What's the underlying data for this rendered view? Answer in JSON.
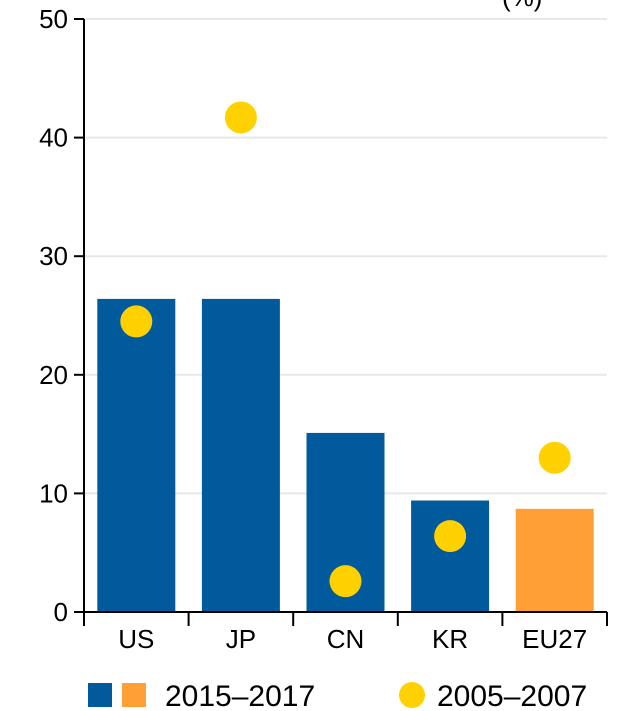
{
  "colors": {
    "bar_main": "#005a9c",
    "bar_highlight": "#ff9f35",
    "marker": "#ffd100",
    "grid": "#e8e8e8",
    "axis": "#000000"
  },
  "unit_label": "(%)",
  "legend": {
    "bars_label": "2015–2017",
    "markers_label": "2005–2007"
  },
  "chart_data": {
    "type": "bar",
    "categories": [
      "US",
      "JP",
      "CN",
      "KR",
      "EU27"
    ],
    "series": [
      {
        "name": "2015–2017",
        "kind": "bar",
        "values": [
          26.4,
          26.4,
          15.1,
          9.4,
          8.7
        ],
        "colors": [
          "#005a9c",
          "#005a9c",
          "#005a9c",
          "#005a9c",
          "#ff9f35"
        ]
      },
      {
        "name": "2005–2007",
        "kind": "marker",
        "values": [
          24.5,
          41.7,
          2.6,
          6.4,
          13.0
        ]
      }
    ],
    "ylim": [
      0,
      50
    ],
    "yticks": [
      0,
      10,
      20,
      30,
      40,
      50
    ],
    "grid": true,
    "legend_position": "bottom",
    "title": "",
    "xlabel": "",
    "ylabel": "(%)"
  }
}
